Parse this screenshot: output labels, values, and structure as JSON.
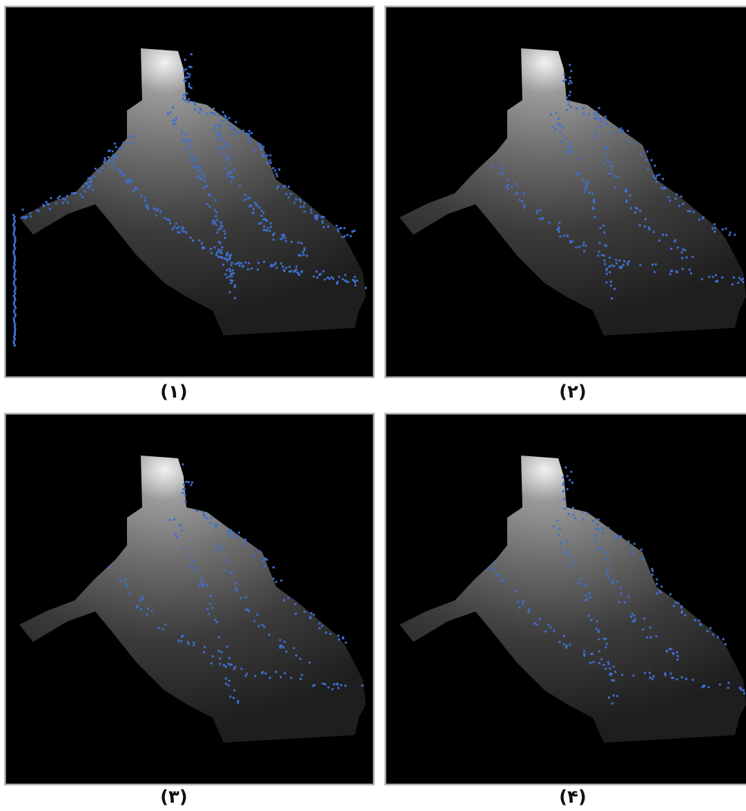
{
  "panels": [
    {
      "caption": "(۱)"
    },
    {
      "caption": "(۲)"
    },
    {
      "caption": "(۳)"
    },
    {
      "caption": "(۴)"
    }
  ]
}
